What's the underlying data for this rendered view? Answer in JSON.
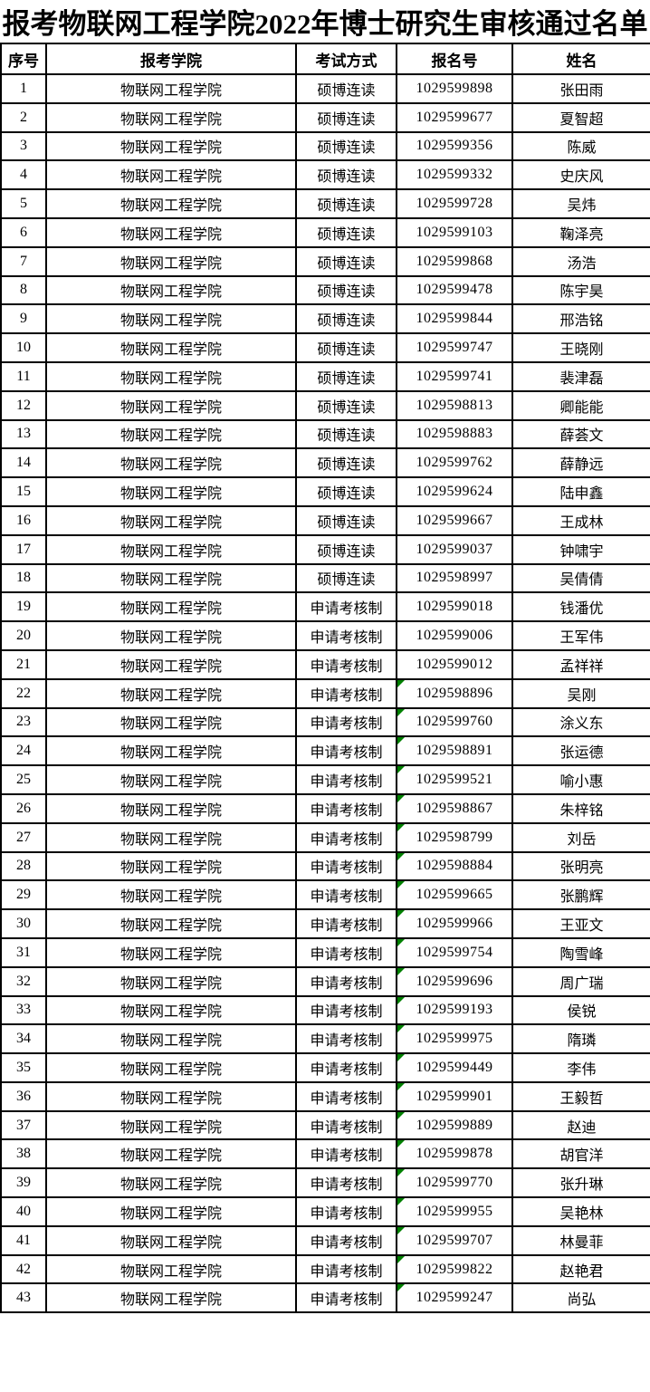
{
  "title": "报考物联网工程学院2022年博士研究生审核通过名单",
  "colors": {
    "flag_triangle": "#008000",
    "border": "#000000",
    "background": "#ffffff",
    "text": "#000000"
  },
  "table": {
    "headers": [
      "序号",
      "报考学院",
      "考试方式",
      "报名号",
      "姓名"
    ],
    "rows": [
      {
        "no": "1",
        "college": "物联网工程学院",
        "method": "硕博连读",
        "reg_no": "1029599898",
        "name": "张田雨",
        "flag": false
      },
      {
        "no": "2",
        "college": "物联网工程学院",
        "method": "硕博连读",
        "reg_no": "1029599677",
        "name": "夏智超",
        "flag": false
      },
      {
        "no": "3",
        "college": "物联网工程学院",
        "method": "硕博连读",
        "reg_no": "1029599356",
        "name": "陈威",
        "flag": false
      },
      {
        "no": "4",
        "college": "物联网工程学院",
        "method": "硕博连读",
        "reg_no": "1029599332",
        "name": "史庆风",
        "flag": false
      },
      {
        "no": "5",
        "college": "物联网工程学院",
        "method": "硕博连读",
        "reg_no": "1029599728",
        "name": "吴炜",
        "flag": false
      },
      {
        "no": "6",
        "college": "物联网工程学院",
        "method": "硕博连读",
        "reg_no": "1029599103",
        "name": "鞠泽亮",
        "flag": false
      },
      {
        "no": "7",
        "college": "物联网工程学院",
        "method": "硕博连读",
        "reg_no": "1029599868",
        "name": "汤浩",
        "flag": false
      },
      {
        "no": "8",
        "college": "物联网工程学院",
        "method": "硕博连读",
        "reg_no": "1029599478",
        "name": "陈宇昊",
        "flag": false
      },
      {
        "no": "9",
        "college": "物联网工程学院",
        "method": "硕博连读",
        "reg_no": "1029599844",
        "name": "邢浩铭",
        "flag": false
      },
      {
        "no": "10",
        "college": "物联网工程学院",
        "method": "硕博连读",
        "reg_no": "1029599747",
        "name": "王晓刚",
        "flag": false
      },
      {
        "no": "11",
        "college": "物联网工程学院",
        "method": "硕博连读",
        "reg_no": "1029599741",
        "name": "裴津磊",
        "flag": false
      },
      {
        "no": "12",
        "college": "物联网工程学院",
        "method": "硕博连读",
        "reg_no": "1029598813",
        "name": "卿能能",
        "flag": false
      },
      {
        "no": "13",
        "college": "物联网工程学院",
        "method": "硕博连读",
        "reg_no": "1029598883",
        "name": "薛荟文",
        "flag": false
      },
      {
        "no": "14",
        "college": "物联网工程学院",
        "method": "硕博连读",
        "reg_no": "1029599762",
        "name": "薛静远",
        "flag": false
      },
      {
        "no": "15",
        "college": "物联网工程学院",
        "method": "硕博连读",
        "reg_no": "1029599624",
        "name": "陆申鑫",
        "flag": false
      },
      {
        "no": "16",
        "college": "物联网工程学院",
        "method": "硕博连读",
        "reg_no": "1029599667",
        "name": "王成林",
        "flag": false
      },
      {
        "no": "17",
        "college": "物联网工程学院",
        "method": "硕博连读",
        "reg_no": "1029599037",
        "name": "钟啸宇",
        "flag": false
      },
      {
        "no": "18",
        "college": "物联网工程学院",
        "method": "硕博连读",
        "reg_no": "1029598997",
        "name": "吴倩倩",
        "flag": false
      },
      {
        "no": "19",
        "college": "物联网工程学院",
        "method": "申请考核制",
        "reg_no": "1029599018",
        "name": "钱潘优",
        "flag": false
      },
      {
        "no": "20",
        "college": "物联网工程学院",
        "method": "申请考核制",
        "reg_no": "1029599006",
        "name": "王军伟",
        "flag": false
      },
      {
        "no": "21",
        "college": "物联网工程学院",
        "method": "申请考核制",
        "reg_no": "1029599012",
        "name": "孟祥祥",
        "flag": false
      },
      {
        "no": "22",
        "college": "物联网工程学院",
        "method": "申请考核制",
        "reg_no": "1029598896",
        "name": "吴刚",
        "flag": true
      },
      {
        "no": "23",
        "college": "物联网工程学院",
        "method": "申请考核制",
        "reg_no": "1029599760",
        "name": "涂义东",
        "flag": true
      },
      {
        "no": "24",
        "college": "物联网工程学院",
        "method": "申请考核制",
        "reg_no": "1029598891",
        "name": "张运德",
        "flag": true
      },
      {
        "no": "25",
        "college": "物联网工程学院",
        "method": "申请考核制",
        "reg_no": "1029599521",
        "name": "喻小惠",
        "flag": true
      },
      {
        "no": "26",
        "college": "物联网工程学院",
        "method": "申请考核制",
        "reg_no": "1029598867",
        "name": "朱梓铭",
        "flag": true
      },
      {
        "no": "27",
        "college": "物联网工程学院",
        "method": "申请考核制",
        "reg_no": "1029598799",
        "name": "刘岳",
        "flag": true
      },
      {
        "no": "28",
        "college": "物联网工程学院",
        "method": "申请考核制",
        "reg_no": "1029598884",
        "name": "张明亮",
        "flag": true
      },
      {
        "no": "29",
        "college": "物联网工程学院",
        "method": "申请考核制",
        "reg_no": "1029599665",
        "name": "张鹏辉",
        "flag": true
      },
      {
        "no": "30",
        "college": "物联网工程学院",
        "method": "申请考核制",
        "reg_no": "1029599966",
        "name": "王亚文",
        "flag": true
      },
      {
        "no": "31",
        "college": "物联网工程学院",
        "method": "申请考核制",
        "reg_no": "1029599754",
        "name": "陶雪峰",
        "flag": true
      },
      {
        "no": "32",
        "college": "物联网工程学院",
        "method": "申请考核制",
        "reg_no": "1029599696",
        "name": "周广瑞",
        "flag": true
      },
      {
        "no": "33",
        "college": "物联网工程学院",
        "method": "申请考核制",
        "reg_no": "1029599193",
        "name": "侯锐",
        "flag": true
      },
      {
        "no": "34",
        "college": "物联网工程学院",
        "method": "申请考核制",
        "reg_no": "1029599975",
        "name": "隋璘",
        "flag": true
      },
      {
        "no": "35",
        "college": "物联网工程学院",
        "method": "申请考核制",
        "reg_no": "1029599449",
        "name": "李伟",
        "flag": true
      },
      {
        "no": "36",
        "college": "物联网工程学院",
        "method": "申请考核制",
        "reg_no": "1029599901",
        "name": "王毅哲",
        "flag": true
      },
      {
        "no": "37",
        "college": "物联网工程学院",
        "method": "申请考核制",
        "reg_no": "1029599889",
        "name": "赵迪",
        "flag": true
      },
      {
        "no": "38",
        "college": "物联网工程学院",
        "method": "申请考核制",
        "reg_no": "1029599878",
        "name": "胡官洋",
        "flag": true
      },
      {
        "no": "39",
        "college": "物联网工程学院",
        "method": "申请考核制",
        "reg_no": "1029599770",
        "name": "张升琳",
        "flag": true
      },
      {
        "no": "40",
        "college": "物联网工程学院",
        "method": "申请考核制",
        "reg_no": "1029599955",
        "name": "吴艳林",
        "flag": true
      },
      {
        "no": "41",
        "college": "物联网工程学院",
        "method": "申请考核制",
        "reg_no": "1029599707",
        "name": "林曼菲",
        "flag": true
      },
      {
        "no": "42",
        "college": "物联网工程学院",
        "method": "申请考核制",
        "reg_no": "1029599822",
        "name": "赵艳君",
        "flag": true
      },
      {
        "no": "43",
        "college": "物联网工程学院",
        "method": "申请考核制",
        "reg_no": "1029599247",
        "name": "尚弘",
        "flag": true
      }
    ]
  }
}
